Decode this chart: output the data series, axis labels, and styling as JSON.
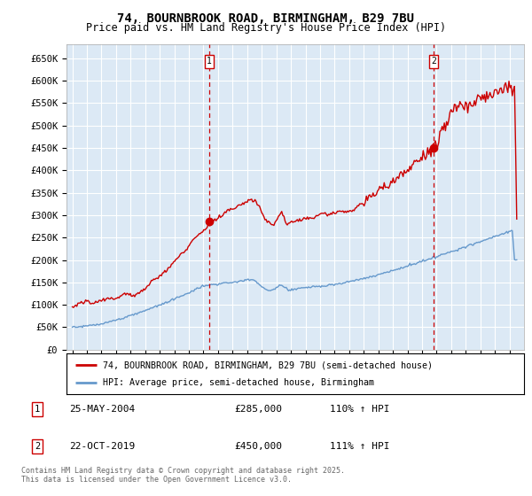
{
  "title": "74, BOURNBROOK ROAD, BIRMINGHAM, B29 7BU",
  "subtitle": "Price paid vs. HM Land Registry's House Price Index (HPI)",
  "ylabel_ticks": [
    "£0",
    "£50K",
    "£100K",
    "£150K",
    "£200K",
    "£250K",
    "£300K",
    "£350K",
    "£400K",
    "£450K",
    "£500K",
    "£550K",
    "£600K",
    "£650K"
  ],
  "ytick_values": [
    0,
    50000,
    100000,
    150000,
    200000,
    250000,
    300000,
    350000,
    400000,
    450000,
    500000,
    550000,
    600000,
    650000
  ],
  "ylim": [
    0,
    680000
  ],
  "sale1_date": "25-MAY-2004",
  "sale1_price": 285000,
  "sale1_hpi": "110% ↑ HPI",
  "sale1_year": 2004.4,
  "sale2_date": "22-OCT-2019",
  "sale2_price": 450000,
  "sale2_hpi": "111% ↑ HPI",
  "sale2_year": 2019.8,
  "legend_line1": "74, BOURNBROOK ROAD, BIRMINGHAM, B29 7BU (semi-detached house)",
  "legend_line2": "HPI: Average price, semi-detached house, Birmingham",
  "footer": "Contains HM Land Registry data © Crown copyright and database right 2025.\nThis data is licensed under the Open Government Licence v3.0.",
  "background_color": "#dce9f5",
  "red_color": "#cc0000",
  "blue_color": "#6699cc",
  "grid_color": "#ffffff"
}
